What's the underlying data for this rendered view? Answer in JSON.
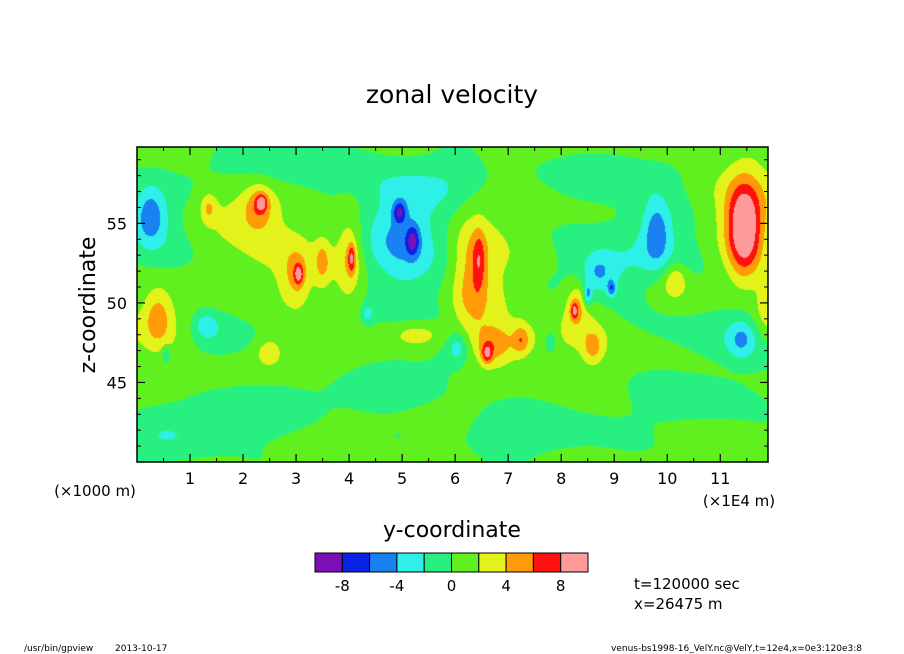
{
  "chart_data": {
    "type": "heatmap",
    "title": "zonal velocity",
    "xlabel": "y-coordinate",
    "ylabel": "z-coordinate",
    "x_unit_left": "(×1000 m)",
    "x_unit_right": "(×1E4 m)",
    "x_ticks": [
      1,
      2,
      3,
      4,
      5,
      6,
      7,
      8,
      9,
      10,
      11
    ],
    "y_ticks": [
      45,
      50,
      55
    ],
    "xlim": [
      0,
      11.9
    ],
    "ylim": [
      40,
      59.8
    ],
    "colorbar": {
      "levels": [
        -10,
        -8,
        -6,
        -4,
        -2,
        0,
        2,
        4,
        6,
        8,
        10
      ],
      "tick_labels": [
        "-8",
        "-4",
        "0",
        "4",
        "8"
      ],
      "tick_values": [
        -8,
        -4,
        0,
        4,
        8
      ],
      "colors": [
        "#7b10b8",
        "#0a22e6",
        "#1a82f0",
        "#2ff0e8",
        "#28f080",
        "#60f020",
        "#e2f21a",
        "#ff9a08",
        "#ff1010",
        "#ff9a9a"
      ]
    },
    "background_color": "#8ef13e",
    "features": [
      {
        "y": 11.45,
        "z": 54.6,
        "ry": 0.32,
        "rz": 2.8,
        "value": 9.5
      },
      {
        "y": 0.25,
        "z": 55.5,
        "ry": 0.28,
        "rz": 1.7,
        "value": -4.5
      },
      {
        "y": 4.95,
        "z": 54.2,
        "ry": 0.6,
        "rz": 2.6,
        "value": -3.5
      },
      {
        "y": 4.95,
        "z": 55.7,
        "ry": 0.12,
        "rz": 0.7,
        "value": -5.5
      },
      {
        "y": 5.2,
        "z": 53.9,
        "ry": 0.12,
        "rz": 0.9,
        "value": -5.5
      },
      {
        "y": 9.8,
        "z": 54.5,
        "ry": 0.25,
        "rz": 2.0,
        "value": -4.3
      },
      {
        "y": 8.7,
        "z": 51.9,
        "ry": 0.3,
        "rz": 1.2,
        "value": -3.2
      },
      {
        "y": 8.5,
        "z": 50.5,
        "ry": 0.08,
        "rz": 0.7,
        "value": -5
      },
      {
        "y": 8.95,
        "z": 50.9,
        "ry": 0.08,
        "rz": 0.5,
        "value": -4.6
      },
      {
        "y": 11.4,
        "z": 47.7,
        "ry": 0.25,
        "rz": 1.2,
        "value": -3.2
      },
      {
        "y": 6.05,
        "z": 47.2,
        "ry": 0.18,
        "rz": 0.9,
        "value": -3
      },
      {
        "y": 1.3,
        "z": 48.6,
        "ry": 0.2,
        "rz": 0.8,
        "value": -3
      },
      {
        "y": 4.35,
        "z": 49.3,
        "ry": 0.12,
        "rz": 0.6,
        "value": -3
      },
      {
        "y": 7.8,
        "z": 47.6,
        "ry": 0.12,
        "rz": 0.7,
        "value": -3
      },
      {
        "y": 0.55,
        "z": 46.8,
        "ry": 0.08,
        "rz": 0.5,
        "value": -3
      },
      {
        "y": 2.3,
        "z": 56.1,
        "ry": 0.25,
        "rz": 1.3,
        "value": 3.5
      },
      {
        "y": 2.35,
        "z": 56.3,
        "ry": 0.1,
        "rz": 0.5,
        "value": 5.3
      },
      {
        "y": 4.0,
        "z": 53.0,
        "ry": 0.25,
        "rz": 3.0,
        "value": 3.3
      },
      {
        "y": 4.05,
        "z": 52.8,
        "ry": 0.07,
        "rz": 0.9,
        "value": 5.3
      },
      {
        "y": 3.0,
        "z": 51.7,
        "ry": 0.25,
        "rz": 1.8,
        "value": 3.3
      },
      {
        "y": 3.05,
        "z": 51.8,
        "ry": 0.08,
        "rz": 0.6,
        "value": 5.3
      },
      {
        "y": 0.4,
        "z": 49.2,
        "ry": 0.25,
        "rz": 1.8,
        "value": 3.3
      },
      {
        "y": 6.3,
        "z": 51.5,
        "ry": 0.35,
        "rz": 4.0,
        "value": 3.2
      },
      {
        "y": 6.45,
        "z": 52.7,
        "ry": 0.12,
        "rz": 1.8,
        "value": 3.6
      },
      {
        "y": 6.7,
        "z": 47.3,
        "ry": 0.35,
        "rz": 1.3,
        "value": 3.3
      },
      {
        "y": 6.6,
        "z": 46.8,
        "ry": 0.1,
        "rz": 0.6,
        "value": 5.2
      },
      {
        "y": 7.25,
        "z": 47.7,
        "ry": 0.15,
        "rz": 0.9,
        "value": 3.5
      },
      {
        "y": 5.3,
        "z": 48.0,
        "ry": 0.5,
        "rz": 0.8,
        "value": 3.2
      },
      {
        "y": 8.3,
        "z": 50.0,
        "ry": 0.2,
        "rz": 1.4,
        "value": 3.3
      },
      {
        "y": 8.25,
        "z": 49.5,
        "ry": 0.07,
        "rz": 0.5,
        "value": 5.2
      },
      {
        "y": 8.6,
        "z": 47.2,
        "ry": 0.18,
        "rz": 1.0,
        "value": 3.3
      },
      {
        "y": 10.15,
        "z": 51.5,
        "ry": 0.2,
        "rz": 1.0,
        "value": 3.3
      },
      {
        "y": 11.9,
        "z": 49.5,
        "ry": 0.25,
        "rz": 1.8,
        "value": 3.3
      },
      {
        "y": 1.35,
        "z": 56.0,
        "ry": 0.15,
        "rz": 0.9,
        "value": 3.2
      },
      {
        "y": 2.5,
        "z": 46.9,
        "ry": 0.25,
        "rz": 0.9,
        "value": 3.2
      },
      {
        "y": 3.5,
        "z": 52.6,
        "ry": 0.15,
        "rz": 1.5,
        "value": 3.2
      },
      {
        "y": 11.4,
        "z": 56.3,
        "ry": 0.9,
        "rz": 3.0,
        "value": 2.2
      },
      {
        "y": 3.3,
        "z": 52.5,
        "ry": 1.3,
        "rz": 3.0,
        "value": 2.2
      },
      {
        "y": 6.5,
        "z": 52.0,
        "ry": 0.7,
        "rz": 4.5,
        "value": 2.1
      },
      {
        "y": 2.0,
        "z": 55.5,
        "ry": 0.8,
        "rz": 1.8,
        "value": 2.1
      },
      {
        "y": 0.5,
        "z": 48.5,
        "ry": 0.7,
        "rz": 2.0,
        "value": 2.1
      },
      {
        "y": 8.4,
        "z": 49.0,
        "ry": 0.6,
        "rz": 2.5,
        "value": 2.1
      },
      {
        "y": 10.0,
        "z": 51.0,
        "ry": 0.6,
        "rz": 1.5,
        "value": 2.1
      },
      {
        "y": 7.0,
        "z": 47.5,
        "ry": 0.8,
        "rz": 1.2,
        "value": 2.1
      },
      {
        "y": 4.8,
        "z": 53.0,
        "ry": 1.4,
        "rz": 4.5,
        "value": -2.4
      },
      {
        "y": 9.8,
        "z": 53.5,
        "ry": 0.9,
        "rz": 3.5,
        "value": -2.3
      },
      {
        "y": 0.3,
        "z": 55.0,
        "ry": 0.6,
        "rz": 3.0,
        "value": -2.3
      },
      {
        "y": 8.8,
        "z": 51.5,
        "ry": 0.9,
        "rz": 2.5,
        "value": -2.2
      },
      {
        "y": 11.3,
        "z": 48.0,
        "ry": 0.8,
        "rz": 2.0,
        "value": -2.2
      },
      {
        "y": 6.2,
        "z": 47.0,
        "ry": 0.6,
        "rz": 1.6,
        "value": -2.2
      },
      {
        "y": 1.5,
        "z": 48.0,
        "ry": 0.7,
        "rz": 1.6,
        "value": -2.2
      },
      {
        "y": 5.7,
        "z": 57.5,
        "ry": 1.2,
        "rz": 1.5,
        "value": -2.1
      },
      {
        "y": 3.0,
        "z": 58.5,
        "ry": 1.5,
        "rz": 1.2,
        "value": -2.1
      },
      {
        "y": 9.0,
        "z": 58.0,
        "ry": 1.2,
        "rz": 1.3,
        "value": -2.1
      },
      {
        "y": 2.0,
        "z": 43.0,
        "ry": 1.2,
        "rz": 1.5,
        "value": -2.1
      },
      {
        "y": 7.5,
        "z": 42.0,
        "ry": 1.5,
        "rz": 1.5,
        "value": -2.1
      },
      {
        "y": 10.5,
        "z": 44.0,
        "ry": 1.0,
        "rz": 1.5,
        "value": -2.1
      },
      {
        "y": 4.5,
        "z": 44.5,
        "ry": 1.0,
        "rz": 1.2,
        "value": -2.1
      },
      {
        "y": 0.6,
        "z": 41.5,
        "ry": 1.0,
        "rz": 1.5,
        "value": -2.1
      }
    ]
  },
  "footer": {
    "time_text": "t=120000 sec",
    "x_text": "x=26475 m",
    "program": "/usr/bin/gpview",
    "date": "2013-10-17",
    "source": "venus-bs1998-16_VelY.nc@VelY,t=12e4,x=0e3:120e3:8"
  }
}
